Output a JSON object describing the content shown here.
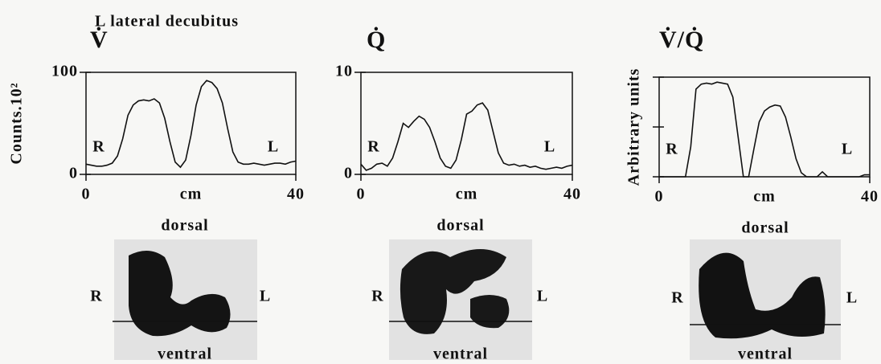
{
  "header": "L lateral decubitus",
  "chart_data": [
    {
      "type": "line",
      "title": "V̇",
      "ylabel": "Counts.10²",
      "xlabel": "cm",
      "annotations": [
        "R",
        "L"
      ],
      "color": "#111111",
      "xlim": [
        0,
        40
      ],
      "xticks": [
        0,
        40
      ],
      "ylim": [
        0,
        100
      ],
      "yticks": [
        0,
        100
      ],
      "ytick_labels": true,
      "x": [
        0,
        1,
        2,
        3,
        4,
        5,
        6,
        7,
        8,
        9,
        10,
        11,
        12,
        13,
        14,
        15,
        16,
        17,
        18,
        19,
        20,
        21,
        22,
        23,
        24,
        25,
        26,
        27,
        28,
        29,
        30,
        31,
        32,
        33,
        34,
        35,
        36,
        37,
        38,
        39,
        40
      ],
      "values": [
        10,
        9,
        8,
        8,
        9,
        11,
        18,
        35,
        58,
        68,
        72,
        73,
        72,
        74,
        70,
        55,
        32,
        12,
        7,
        14,
        38,
        68,
        86,
        92,
        90,
        84,
        70,
        45,
        22,
        12,
        10,
        10,
        11,
        10,
        9,
        10,
        11,
        11,
        10,
        12,
        13
      ]
    },
    {
      "type": "line",
      "title": "Q̇",
      "xlabel": "cm",
      "annotations": [
        "R",
        "L"
      ],
      "color": "#111111",
      "xlim": [
        0,
        40
      ],
      "xticks": [
        0,
        40
      ],
      "ylim": [
        0,
        10
      ],
      "yticks": [
        0,
        10
      ],
      "ytick_labels": true,
      "x": [
        0,
        1,
        2,
        3,
        4,
        5,
        6,
        7,
        8,
        9,
        10,
        11,
        12,
        13,
        14,
        15,
        16,
        17,
        18,
        19,
        20,
        21,
        22,
        23,
        24,
        25,
        26,
        27,
        28,
        29,
        30,
        31,
        32,
        33,
        34,
        35,
        36,
        37,
        38,
        39,
        40
      ],
      "values": [
        1,
        0.4,
        0.6,
        1,
        1.1,
        0.8,
        1.6,
        3.2,
        5,
        4.6,
        5.2,
        5.7,
        5.4,
        4.6,
        3.2,
        1.6,
        0.8,
        0.6,
        1.4,
        3.4,
        5.9,
        6.2,
        6.8,
        7,
        6.3,
        4.2,
        2.1,
        1.1,
        0.9,
        1,
        0.8,
        0.9,
        0.7,
        0.8,
        0.6,
        0.5,
        0.6,
        0.7,
        0.6,
        0.8,
        0.9
      ]
    },
    {
      "type": "line",
      "title": "V̇/Q̇",
      "ylabel": "Arbitrary units",
      "xlabel": "cm",
      "annotations": [
        "R",
        "L"
      ],
      "color": "#111111",
      "xlim": [
        0,
        40
      ],
      "xticks": [
        0,
        40
      ],
      "ylim": [
        0,
        1
      ],
      "yticks": [
        0,
        0.5,
        1
      ],
      "ytick_labels": false,
      "x": [
        0,
        1,
        2,
        3,
        4,
        5,
        6,
        7,
        8,
        9,
        10,
        11,
        12,
        13,
        14,
        15,
        16,
        17,
        18,
        19,
        20,
        21,
        22,
        23,
        24,
        25,
        26,
        27,
        28,
        29,
        30,
        31,
        32,
        33,
        34,
        35,
        36,
        37,
        38,
        39,
        40
      ],
      "values": [
        0,
        0,
        0,
        0,
        0,
        0,
        0.3,
        0.88,
        0.93,
        0.94,
        0.93,
        0.95,
        0.94,
        0.93,
        0.8,
        0.4,
        0,
        0,
        0.28,
        0.55,
        0.66,
        0.7,
        0.72,
        0.71,
        0.6,
        0.4,
        0.18,
        0.04,
        0,
        0,
        0,
        0.05,
        0,
        0,
        0,
        0,
        0,
        0,
        0,
        0.02,
        0.02
      ]
    }
  ],
  "scans": [
    {
      "top": "dorsal",
      "bottom": "ventral",
      "left": "R",
      "right": "L"
    },
    {
      "top": "dorsal",
      "bottom": "ventral",
      "left": "R",
      "right": "L"
    },
    {
      "top": "dorsal",
      "bottom": "ventral",
      "left": "R",
      "right": "L"
    }
  ]
}
